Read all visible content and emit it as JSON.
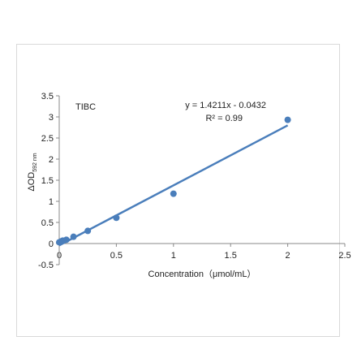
{
  "chart_data": {
    "type": "scatter",
    "title": "TIBC",
    "xlabel": "Concentration（μmol/mL）",
    "ylabel_main": "ΔOD",
    "ylabel_sub": "592 nm",
    "xlim": [
      0,
      2.5
    ],
    "ylim": [
      -0.5,
      3.5
    ],
    "xticks": [
      "0",
      "0.5",
      "1",
      "1.5",
      "2",
      "2.5"
    ],
    "yticks": [
      "-0.5",
      "0",
      "0.5",
      "1",
      "1.5",
      "2",
      "2.5",
      "3",
      "3.5"
    ],
    "grid": false,
    "points": [
      {
        "x": 0,
        "y": 0.03
      },
      {
        "x": 0.0156,
        "y": 0.05
      },
      {
        "x": 0.03125,
        "y": 0.07
      },
      {
        "x": 0.0625,
        "y": 0.09
      },
      {
        "x": 0.125,
        "y": 0.16
      },
      {
        "x": 0.25,
        "y": 0.3
      },
      {
        "x": 0.5,
        "y": 0.61
      },
      {
        "x": 1,
        "y": 1.18
      },
      {
        "x": 2,
        "y": 2.93
      }
    ],
    "trendline": {
      "slope": 1.4211,
      "intercept": -0.0432,
      "x_range": [
        0,
        2
      ]
    },
    "equation": "y = 1.4211x - 0.0432",
    "r2_label": "R² = 0.99",
    "color": "#4a7ebb"
  }
}
